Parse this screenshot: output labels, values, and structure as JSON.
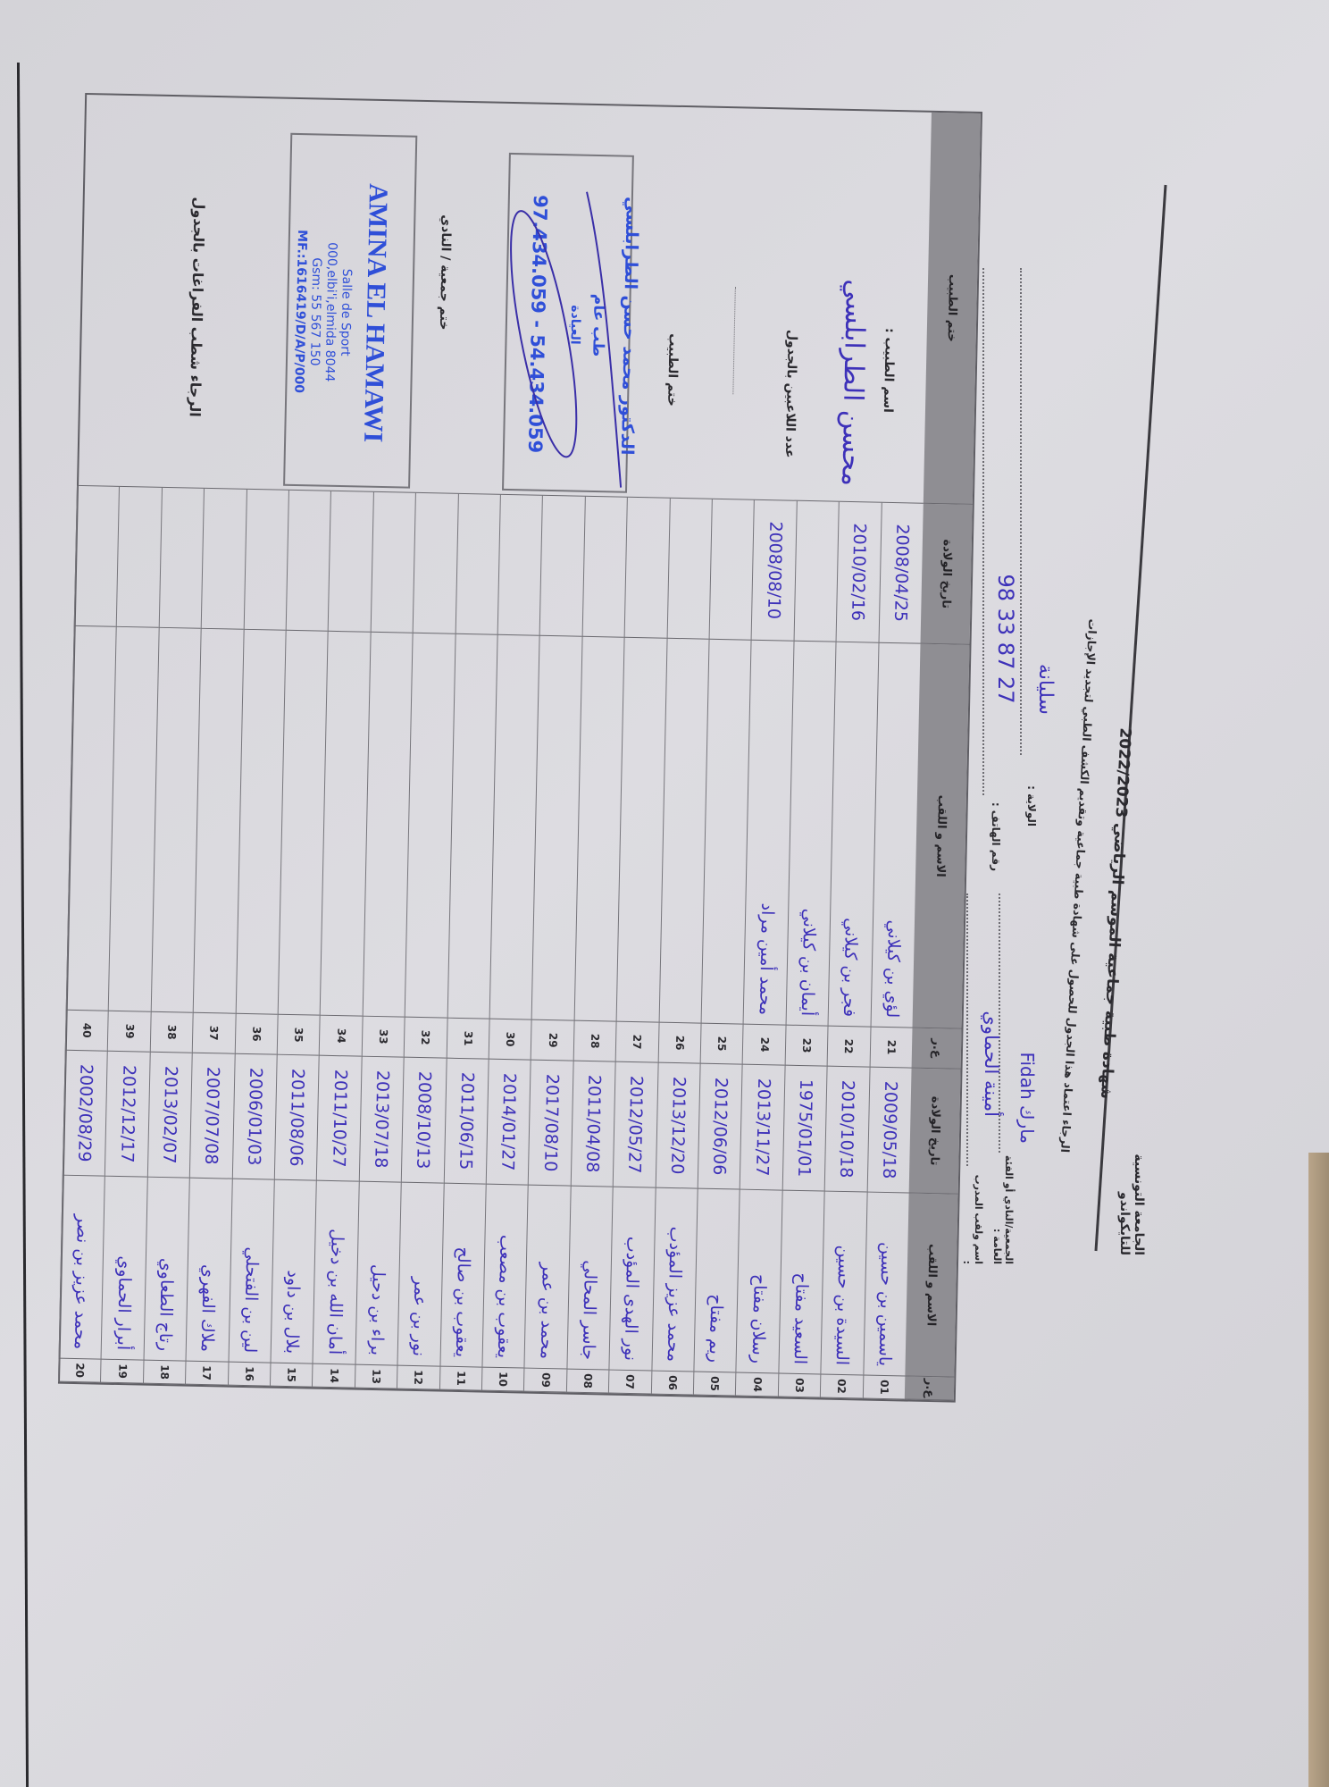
{
  "header": {
    "federation": "الجامعة التونسية للتايكواندو",
    "title": "شهادة طبية جماعية الموسم الرياضي 2022/2023",
    "instruction": "الرجاء اعتماد هذا الجدول للحصول على شهادة طبية جماعية وتقديم الكشف الطبي لتجديد الإجازات",
    "club_label": "الجمعية/النادي أو الفئة العامة :",
    "club_value": "مارك Fidah",
    "region_label": "الولاية :",
    "region_value": "سليانة",
    "coach_label": "اسم ولقب المدرب :",
    "coach_value": "أمينة الحماوي",
    "phone_label": "رقم الهاتف :",
    "phone_value": "98 33 87 27"
  },
  "table": {
    "columns": {
      "num": "ع.ر",
      "name": "الاسم و اللقب",
      "dob": "تاريخ الولادة"
    },
    "panel_header": "ختم الطبيب",
    "rows": [
      {
        "n": "01",
        "name": "ياسمين بن حسين",
        "dob": "2009/05/18"
      },
      {
        "n": "02",
        "name": "السيدة بن حسين",
        "dob": "2010/10/18"
      },
      {
        "n": "03",
        "name": "السعيد مفتاح",
        "dob": "1975/01/01"
      },
      {
        "n": "04",
        "name": "رسلان مفتاح",
        "dob": "2013/11/27"
      },
      {
        "n": "05",
        "name": "ريم مفتاح",
        "dob": "2012/06/06"
      },
      {
        "n": "06",
        "name": "محمد عزيز المؤدب",
        "dob": "2013/12/20"
      },
      {
        "n": "07",
        "name": "نور الهدى المؤدب",
        "dob": "2012/05/27"
      },
      {
        "n": "08",
        "name": "جاسر المحالي",
        "dob": "2011/04/08"
      },
      {
        "n": "09",
        "name": "محمد بن عمر",
        "dob": "2017/08/10"
      },
      {
        "n": "10",
        "name": "يعقوب بن مصعب",
        "dob": "2014/01/27"
      },
      {
        "n": "11",
        "name": "يعقوب بن صالح",
        "dob": "2011/06/15"
      },
      {
        "n": "12",
        "name": "نور بن عمر",
        "dob": "2008/10/13"
      },
      {
        "n": "13",
        "name": "براء بن دحيل",
        "dob": "2013/07/18"
      },
      {
        "n": "14",
        "name": "أمان الله بن دخيل",
        "dob": "2011/10/27"
      },
      {
        "n": "15",
        "name": "بلال بن داود",
        "dob": "2011/08/06"
      },
      {
        "n": "16",
        "name": "لين بن الفتحلي",
        "dob": "2006/01/03"
      },
      {
        "n": "17",
        "name": "ملاك الفهري",
        "dob": "2007/07/08"
      },
      {
        "n": "18",
        "name": "رتاج الطعاوي",
        "dob": "2013/02/07"
      },
      {
        "n": "19",
        "name": "أبرار الحماوي",
        "dob": "2012/12/17"
      },
      {
        "n": "20",
        "name": "محمد عزيز بن نصر",
        "dob": "2002/08/29"
      },
      {
        "n": "21",
        "name": "لؤي بن كيلاني",
        "dob": "2008/04/25"
      },
      {
        "n": "22",
        "name": "فجر بن كيلاني",
        "dob": "2010/02/16"
      },
      {
        "n": "23",
        "name": "أيمان بن كيلاني",
        "dob": ""
      },
      {
        "n": "24",
        "name": "محمد أمين مراد",
        "dob": "2008/08/10"
      },
      {
        "n": "25",
        "name": "",
        "dob": ""
      },
      {
        "n": "26",
        "name": "",
        "dob": ""
      },
      {
        "n": "27",
        "name": "",
        "dob": ""
      },
      {
        "n": "28",
        "name": "",
        "dob": ""
      },
      {
        "n": "29",
        "name": "",
        "dob": ""
      },
      {
        "n": "30",
        "name": "",
        "dob": ""
      },
      {
        "n": "31",
        "name": "",
        "dob": ""
      },
      {
        "n": "32",
        "name": "",
        "dob": ""
      },
      {
        "n": "33",
        "name": "",
        "dob": ""
      },
      {
        "n": "34",
        "name": "",
        "dob": ""
      },
      {
        "n": "35",
        "name": "",
        "dob": ""
      },
      {
        "n": "36",
        "name": "",
        "dob": ""
      },
      {
        "n": "37",
        "name": "",
        "dob": ""
      },
      {
        "n": "38",
        "name": "",
        "dob": ""
      },
      {
        "n": "39",
        "name": "",
        "dob": ""
      },
      {
        "n": "40",
        "name": "",
        "dob": ""
      }
    ]
  },
  "panel": {
    "doctor_name_label": "اسم الطبيب :",
    "doctor_name_value": "محسن الطرابلسي",
    "player_count_label": "عدد اللاعبين بالجدول",
    "doctor_stamp_label": "ختم الطبيب",
    "doctor_stamp": {
      "line1": "الدكتور محمد حسن الطرابلسي",
      "line2": "طب عام",
      "line3": "العيادة",
      "phones": "97.434.059 - 54.434.059"
    },
    "club_stamp_label": "ختم جمعية / النادي",
    "club_stamp": {
      "name": "AMINA EL HAMAWI",
      "line1": "Salle de Sport",
      "line2": "000,elbi'i,elmida 8044",
      "line3": "Gsm: 55 567 150",
      "line4": "MF.:1616419/D/A/P/000"
    },
    "note": "الرجاء شطب الفراغات بالجدول"
  },
  "colors": {
    "ink": "#3d31b9",
    "stamp": "#2f4fd8",
    "header_band": "#8f8e93",
    "paper": "#d9d8dd"
  }
}
